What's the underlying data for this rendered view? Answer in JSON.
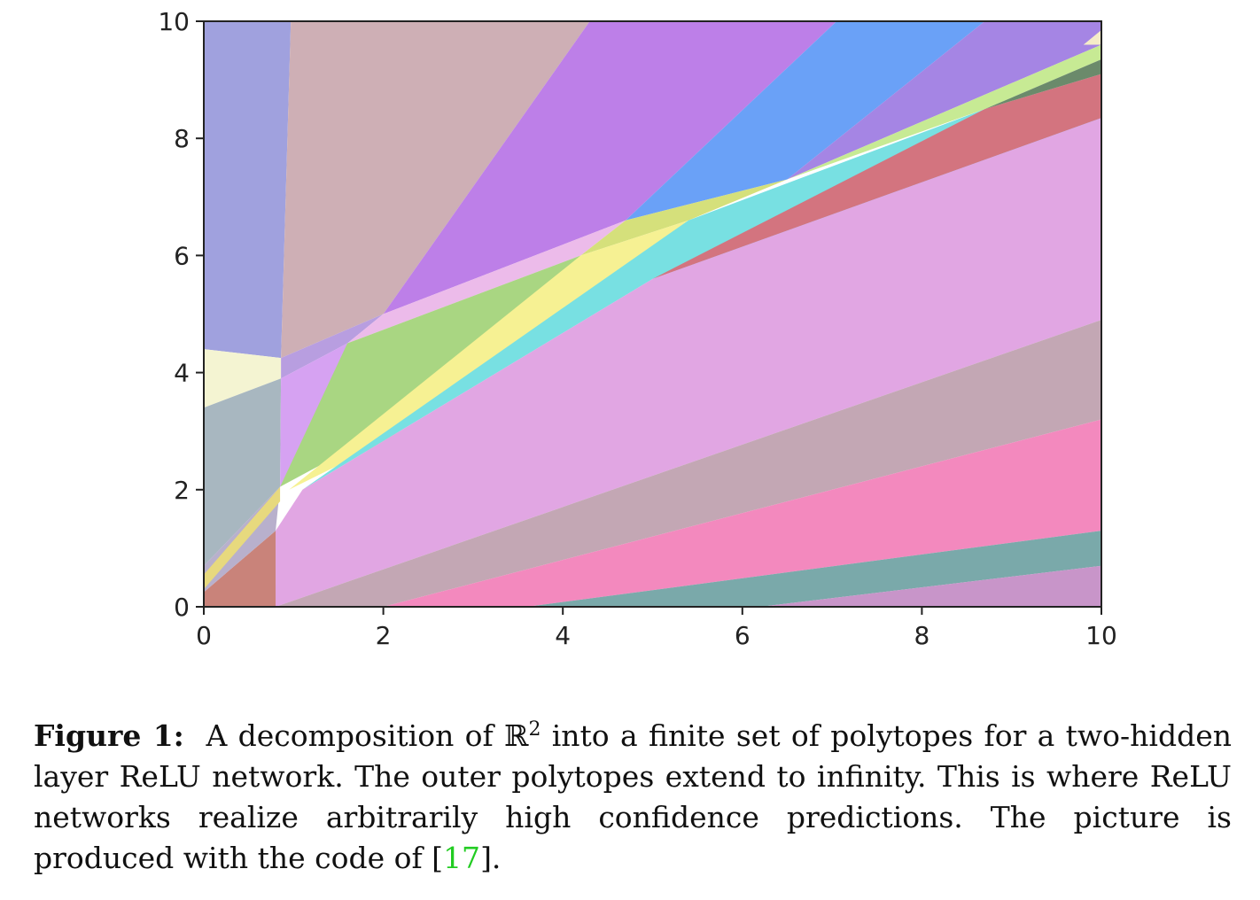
{
  "figure": {
    "chart_data": {
      "type": "region-partition",
      "description_source": "polytope decomposition of the input plane",
      "xlim": [
        0,
        10
      ],
      "ylim": [
        0,
        10
      ],
      "x_ticks": [
        "0",
        "2",
        "4",
        "6",
        "8",
        "10"
      ],
      "y_ticks": [
        "0",
        "2",
        "4",
        "6",
        "8",
        "10"
      ],
      "regions": [
        {
          "color": "#a0a1de",
          "vertices": [
            [
              0,
              10
            ],
            [
              0.97,
              10
            ],
            [
              0.86,
              4.25
            ],
            [
              0,
              4.4
            ]
          ]
        },
        {
          "color": "#f4f4d2",
          "vertices": [
            [
              0,
              4.4
            ],
            [
              0.86,
              4.25
            ],
            [
              0.86,
              3.9
            ],
            [
              0,
              3.4
            ]
          ]
        },
        {
          "color": "#a8b7c0",
          "vertices": [
            [
              0,
              3.4
            ],
            [
              0.86,
              3.9
            ],
            [
              0.85,
              2.05
            ],
            [
              0,
              0.7
            ]
          ]
        },
        {
          "color": "#ceafb5",
          "vertices": [
            [
              0.97,
              10
            ],
            [
              4.3,
              10
            ],
            [
              2.0,
              5.0
            ],
            [
              0.86,
              4.25
            ]
          ]
        },
        {
          "color": "#bd7fe8",
          "vertices": [
            [
              4.3,
              10
            ],
            [
              7.05,
              10
            ],
            [
              4.7,
              6.6
            ],
            [
              2.0,
              5.0
            ]
          ]
        },
        {
          "color": "#6aa1f7",
          "vertices": [
            [
              7.05,
              10
            ],
            [
              8.7,
              10
            ],
            [
              6.5,
              7.3
            ],
            [
              4.7,
              6.6
            ]
          ]
        },
        {
          "color": "#a585e4",
          "vertices": [
            [
              8.7,
              10
            ],
            [
              10,
              10
            ],
            [
              10,
              9.6
            ],
            [
              6.5,
              7.3
            ]
          ]
        },
        {
          "color": "#b89ee0",
          "vertices": [
            [
              0.86,
              4.25
            ],
            [
              2.0,
              5.0
            ],
            [
              1.6,
              4.5
            ],
            [
              0.86,
              3.9
            ]
          ]
        },
        {
          "color": "#d6a2f2",
          "vertices": [
            [
              0.86,
              3.9
            ],
            [
              1.6,
              4.5
            ],
            [
              1.35,
              2.7
            ],
            [
              0.85,
              2.05
            ]
          ]
        },
        {
          "color": "#ecbbea",
          "vertices": [
            [
              2.0,
              5.0
            ],
            [
              4.7,
              6.6
            ],
            [
              4.2,
              6.0
            ],
            [
              1.6,
              4.5
            ]
          ]
        },
        {
          "color": "#a9d682",
          "vertices": [
            [
              1.6,
              4.5
            ],
            [
              4.2,
              6.0
            ],
            [
              2.0,
              3.0
            ],
            [
              0.85,
              2.05
            ]
          ]
        },
        {
          "color": "#d5e07b",
          "vertices": [
            [
              4.2,
              6.0
            ],
            [
              4.7,
              6.6
            ],
            [
              6.5,
              7.3
            ],
            [
              5.4,
              6.6
            ]
          ]
        },
        {
          "color": "#f6f193",
          "vertices": [
            [
              4.2,
              6.0
            ],
            [
              5.4,
              6.6
            ],
            [
              2.0,
              2.8
            ],
            [
              0.95,
              2.0
            ]
          ]
        },
        {
          "color": "#78e0e2",
          "vertices": [
            [
              5.4,
              6.6
            ],
            [
              8.7,
              8.5
            ],
            [
              10,
              8.8
            ],
            [
              10,
              8.3
            ],
            [
              5.0,
              5.6
            ],
            [
              1.1,
              2.0
            ]
          ]
        },
        {
          "color": "#d3747f",
          "vertices": [
            [
              8.7,
              8.5
            ],
            [
              10,
              9.1
            ],
            [
              10,
              8.35
            ],
            [
              5.0,
              5.6
            ]
          ]
        },
        {
          "color": "#c7ea94",
          "vertices": [
            [
              6.5,
              7.3
            ],
            [
              10,
              9.6
            ],
            [
              10,
              9.35
            ],
            [
              8.7,
              8.5
            ]
          ]
        },
        {
          "color": "#6b8a6b",
          "vertices": [
            [
              8.7,
              8.5
            ],
            [
              10,
              9.35
            ],
            [
              10,
              9.1
            ]
          ]
        },
        {
          "color": "#f5ecc8",
          "vertices": [
            [
              10,
              9.6
            ],
            [
              10,
              9.85
            ],
            [
              9.8,
              9.6
            ]
          ]
        },
        {
          "color": "#e1a6e3",
          "vertices": [
            [
              0.8,
              0
            ],
            [
              10,
              4.9
            ],
            [
              10,
              8.35
            ],
            [
              5.0,
              5.6
            ],
            [
              1.1,
              2.0
            ],
            [
              0.8,
              1.3
            ]
          ]
        },
        {
          "color": "#c3a7b4",
          "vertices": [
            [
              0.8,
              0
            ],
            [
              2.0,
              0
            ],
            [
              10,
              3.2
            ],
            [
              10,
              4.9
            ]
          ]
        },
        {
          "color": "#f389be",
          "vertices": [
            [
              2.0,
              0
            ],
            [
              3.6,
              0
            ],
            [
              10,
              1.3
            ],
            [
              10,
              3.2
            ]
          ]
        },
        {
          "color": "#7aa9aa",
          "vertices": [
            [
              3.6,
              0
            ],
            [
              6.2,
              0
            ],
            [
              10,
              0.7
            ],
            [
              10,
              1.3
            ]
          ]
        },
        {
          "color": "#c895c9",
          "vertices": [
            [
              6.2,
              0
            ],
            [
              10,
              0
            ],
            [
              10,
              0.7
            ]
          ]
        },
        {
          "color": "#c9837a",
          "vertices": [
            [
              0,
              0
            ],
            [
              0.8,
              0
            ],
            [
              0.8,
              1.3
            ],
            [
              0,
              0.25
            ]
          ]
        },
        {
          "color": "#b8b0cc",
          "vertices": [
            [
              0,
              0.25
            ],
            [
              0.8,
              1.3
            ],
            [
              0.85,
              2.05
            ],
            [
              0,
              0.7
            ]
          ]
        },
        {
          "color": "#e7d97e",
          "vertices": [
            [
              0,
              0.3
            ],
            [
              0.85,
              1.8
            ],
            [
              0.85,
              2.05
            ],
            [
              0,
              0.55
            ]
          ]
        }
      ]
    }
  },
  "caption": {
    "label": "Figure 1:",
    "text_before": "A decomposition of ℝ",
    "superscript": "2",
    "text_after": " into a finite set of polytopes for a two-hidden layer ReLU network.  The outer polytopes extend to infinity. This is where ReLU networks realize arbitrarily high confidence predictions. The picture is produced with the code of [",
    "citation": "17",
    "text_end": "]."
  }
}
